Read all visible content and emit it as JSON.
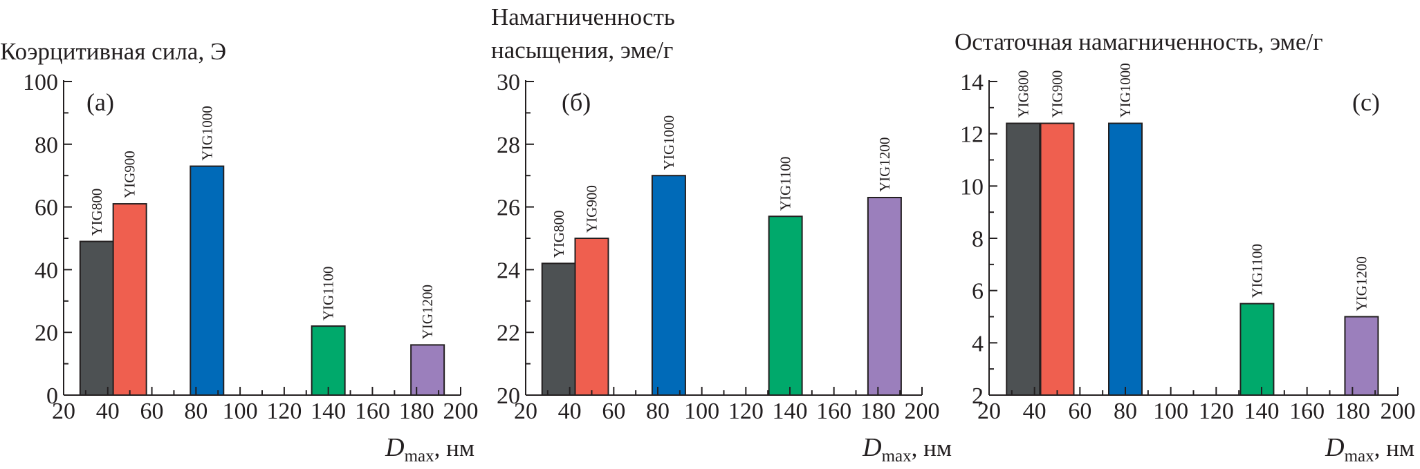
{
  "chart_data": [
    {
      "type": "bar",
      "panel_label": "(a)",
      "title_lines": [
        "Коэрцитивная сила, Э"
      ],
      "x_symbol": "D",
      "x_subscript": "max",
      "x_unit": ", нм",
      "xlim": [
        20,
        200
      ],
      "xticks": [
        20,
        40,
        60,
        80,
        100,
        120,
        140,
        160,
        180,
        200
      ],
      "ylim": [
        0,
        100
      ],
      "yticks": [
        0,
        20,
        40,
        60,
        80,
        100
      ],
      "bars": [
        {
          "name": "YIG800",
          "x": 35,
          "value": 49,
          "color": "#4d5153"
        },
        {
          "name": "YIG900",
          "x": 50,
          "value": 61,
          "color": "#ef5f4f"
        },
        {
          "name": "YIG1000",
          "x": 85,
          "value": 73,
          "color": "#006ab8"
        },
        {
          "name": "YIG1100",
          "x": 140,
          "value": 22,
          "color": "#00a96b"
        },
        {
          "name": "YIG1200",
          "x": 185,
          "value": 16,
          "color": "#9b7fbc"
        }
      ]
    },
    {
      "type": "bar",
      "panel_label": "(б)",
      "title_lines": [
        "Намагниченность",
        "насыщения, эме/г"
      ],
      "x_symbol": "D",
      "x_subscript": "max",
      "x_unit": ", нм",
      "xlim": [
        20,
        200
      ],
      "xticks": [
        20,
        40,
        60,
        80,
        100,
        120,
        140,
        160,
        180,
        200
      ],
      "ylim": [
        20,
        30
      ],
      "yticks": [
        20,
        22,
        24,
        26,
        28,
        30
      ],
      "bars": [
        {
          "name": "YIG800",
          "x": 35,
          "value": 24.2,
          "color": "#4d5153"
        },
        {
          "name": "YIG900",
          "x": 50,
          "value": 25.0,
          "color": "#ef5f4f"
        },
        {
          "name": "YIG1000",
          "x": 85,
          "value": 27.0,
          "color": "#006ab8"
        },
        {
          "name": "YIG1100",
          "x": 138,
          "value": 25.7,
          "color": "#00a96b"
        },
        {
          "name": "YIG1200",
          "x": 183,
          "value": 26.3,
          "color": "#9b7fbc"
        }
      ]
    },
    {
      "type": "bar",
      "panel_label": "(с)",
      "title_lines": [
        "Остаточная намагниченность, эме/г"
      ],
      "x_symbol": "D",
      "x_subscript": "max",
      "x_unit": ", нм",
      "xlim": [
        20,
        200
      ],
      "xticks": [
        20,
        40,
        60,
        80,
        100,
        120,
        140,
        160,
        180,
        200
      ],
      "ylim": [
        2,
        14
      ],
      "yticks": [
        2,
        4,
        6,
        8,
        10,
        12,
        14
      ],
      "bars": [
        {
          "name": "YIG800",
          "x": 35,
          "value": 12.4,
          "color": "#4d5153"
        },
        {
          "name": "YIG900",
          "x": 50,
          "value": 12.4,
          "color": "#ef5f4f"
        },
        {
          "name": "YIG1000",
          "x": 80,
          "value": 12.4,
          "color": "#006ab8"
        },
        {
          "name": "YIG1100",
          "x": 138,
          "value": 5.5,
          "color": "#00a96b"
        },
        {
          "name": "YIG1200",
          "x": 184,
          "value": 5.0,
          "color": "#9b7fbc"
        }
      ]
    }
  ]
}
